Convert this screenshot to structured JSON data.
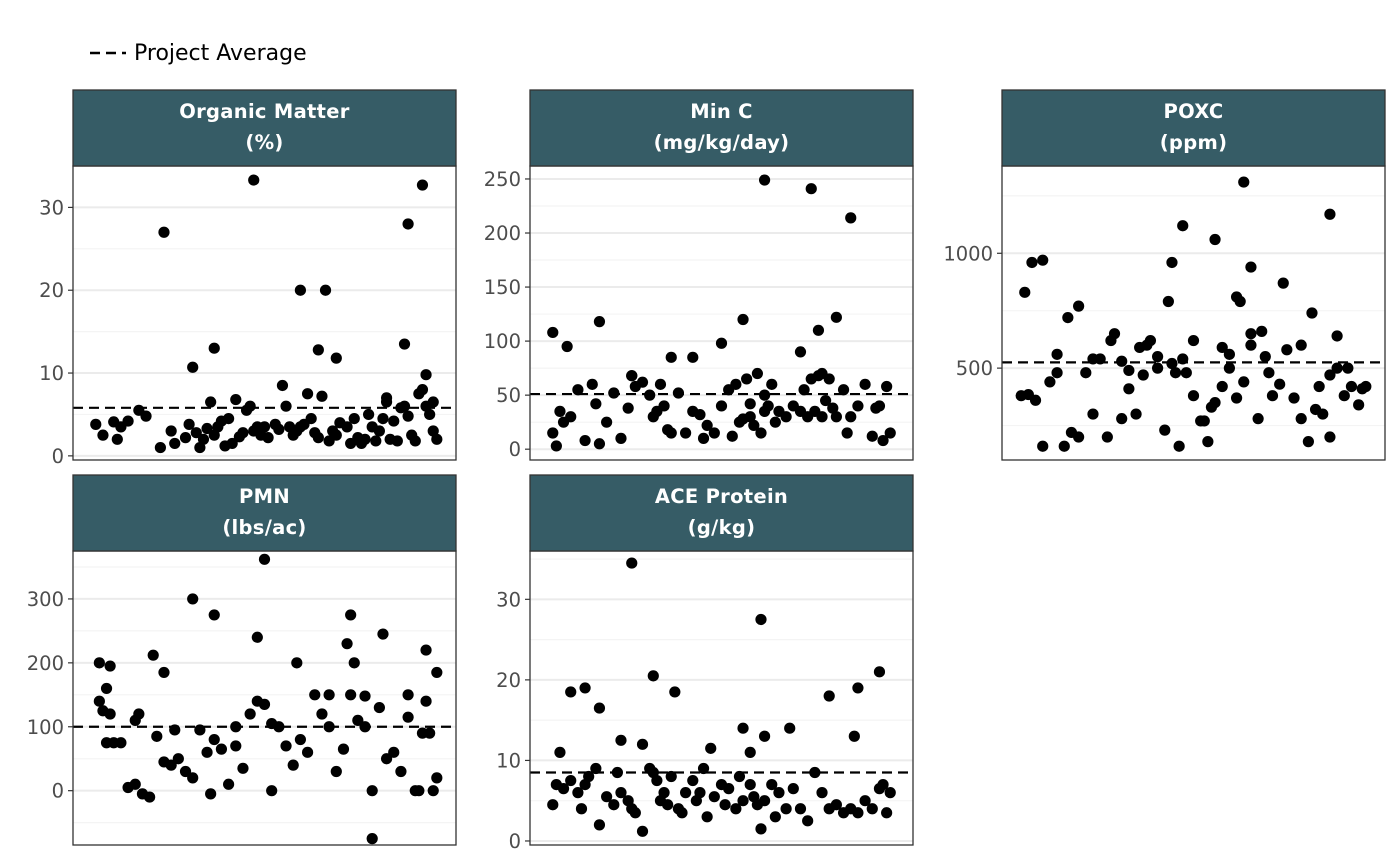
{
  "legend": {
    "label": "Project Average"
  },
  "colors": {
    "strip": "#365c66",
    "points": "#000000",
    "panel_border": "#333333",
    "grid_major": "#ebebeb",
    "grid_minor": "#f4f4f4",
    "tick_text": "#4d4d4d"
  },
  "chart_data": [
    {
      "type": "scatter",
      "title": "Organic Matter",
      "unit": "(%)",
      "ylim": [
        -0.5,
        35
      ],
      "yticks": [
        0,
        10,
        20,
        30
      ],
      "yticklabels": [
        "0",
        "10",
        "20",
        "30"
      ],
      "project_average": 5.8,
      "x": [
        0.03,
        0.05,
        0.08,
        0.09,
        0.1,
        0.12,
        0.15,
        0.17,
        0.21,
        0.24,
        0.25,
        0.28,
        0.29,
        0.31,
        0.32,
        0.33,
        0.34,
        0.35,
        0.36,
        0.37,
        0.38,
        0.39,
        0.4,
        0.41,
        0.42,
        0.43,
        0.44,
        0.45,
        0.46,
        0.47,
        0.48,
        0.49,
        0.5,
        0.51,
        0.53,
        0.54,
        0.56,
        0.57,
        0.58,
        0.59,
        0.6,
        0.61,
        0.63,
        0.64,
        0.65,
        0.66,
        0.68,
        0.69,
        0.7,
        0.71,
        0.73,
        0.74,
        0.75,
        0.76,
        0.77,
        0.78,
        0.79,
        0.8,
        0.81,
        0.82,
        0.83,
        0.84,
        0.85,
        0.86,
        0.87,
        0.88,
        0.89,
        0.9,
        0.91,
        0.92,
        0.93,
        0.94,
        0.95,
        0.96,
        0.97,
        0.22,
        0.47,
        0.6,
        0.67,
        0.9,
        0.65,
        0.36,
        0.7,
        0.94,
        0.89,
        0.84,
        0.95,
        0.97,
        0.98,
        0.3,
        0.55,
        0.62
      ],
      "y": [
        3.8,
        2.5,
        4.1,
        2.0,
        3.5,
        4.2,
        5.5,
        4.8,
        1.0,
        3.0,
        1.5,
        2.2,
        3.8,
        2.8,
        1.0,
        2.0,
        3.3,
        6.5,
        2.5,
        3.5,
        4.2,
        1.2,
        4.5,
        1.5,
        6.8,
        2.3,
        2.8,
        5.5,
        6.0,
        3.0,
        3.5,
        2.5,
        3.5,
        2.2,
        3.8,
        3.2,
        6.0,
        3.5,
        2.5,
        3.0,
        3.5,
        3.8,
        4.5,
        2.8,
        2.2,
        7.2,
        1.8,
        3.0,
        2.5,
        4.0,
        3.5,
        1.5,
        4.5,
        2.2,
        1.5,
        2.0,
        5.0,
        3.5,
        1.8,
        3.0,
        4.5,
        6.5,
        2.0,
        4.2,
        1.8,
        5.8,
        6.0,
        4.8,
        2.5,
        1.8,
        7.5,
        8.0,
        9.8,
        5.0,
        6.5,
        27.0,
        33.3,
        20.0,
        20.0,
        28.0,
        12.8,
        13.0,
        11.8,
        32.7,
        13.5,
        7.0,
        6.0,
        3.0,
        2.0,
        10.7,
        8.5,
        7.5
      ]
    },
    {
      "type": "scatter",
      "title": "Min C",
      "unit": "(mg/kg/day)",
      "ylim": [
        -10,
        262
      ],
      "yticks": [
        0,
        50,
        100,
        150,
        200,
        250
      ],
      "yticklabels": [
        "0",
        "50",
        "100",
        "150",
        "200",
        "250"
      ],
      "project_average": 51,
      "x": [
        0.03,
        0.04,
        0.05,
        0.06,
        0.08,
        0.1,
        0.12,
        0.14,
        0.15,
        0.16,
        0.18,
        0.2,
        0.22,
        0.24,
        0.25,
        0.26,
        0.28,
        0.3,
        0.31,
        0.32,
        0.33,
        0.34,
        0.35,
        0.36,
        0.38,
        0.4,
        0.42,
        0.44,
        0.45,
        0.46,
        0.48,
        0.5,
        0.52,
        0.53,
        0.54,
        0.55,
        0.56,
        0.57,
        0.58,
        0.59,
        0.6,
        0.61,
        0.62,
        0.63,
        0.64,
        0.65,
        0.66,
        0.68,
        0.7,
        0.72,
        0.73,
        0.74,
        0.75,
        0.76,
        0.77,
        0.78,
        0.79,
        0.8,
        0.81,
        0.82,
        0.84,
        0.85,
        0.86,
        0.88,
        0.9,
        0.92,
        0.93,
        0.94,
        0.95,
        0.96,
        0.97,
        0.03,
        0.07,
        0.16,
        0.25,
        0.36,
        0.42,
        0.5,
        0.56,
        0.62,
        0.72,
        0.77,
        0.82,
        0.78,
        0.58
      ],
      "y": [
        15,
        3,
        35,
        25,
        30,
        55,
        8,
        60,
        42,
        5,
        25,
        52,
        10,
        38,
        68,
        58,
        62,
        50,
        30,
        35,
        60,
        40,
        18,
        15,
        52,
        15,
        35,
        32,
        10,
        22,
        15,
        40,
        55,
        12,
        60,
        25,
        28,
        65,
        30,
        22,
        70,
        15,
        50,
        40,
        60,
        25,
        35,
        30,
        40,
        35,
        55,
        30,
        65,
        35,
        68,
        30,
        45,
        65,
        38,
        30,
        55,
        15,
        30,
        40,
        60,
        12,
        38,
        40,
        8,
        58,
        15,
        108,
        95,
        118,
        68,
        85,
        85,
        98,
        120,
        35,
        90,
        110,
        122,
        70,
        42
      ],
      "outliers": [
        [
          0.62,
          249
        ],
        [
          0.75,
          241
        ],
        [
          0.86,
          214
        ]
      ]
    },
    {
      "type": "scatter",
      "title": "POXC",
      "unit": "(ppm)",
      "ylim": [
        100,
        1380
      ],
      "yticks": [
        500,
        1000
      ],
      "yticklabels": [
        "500",
        "1000"
      ],
      "project_average": 525,
      "x": [
        0.02,
        0.04,
        0.06,
        0.08,
        0.1,
        0.12,
        0.14,
        0.16,
        0.18,
        0.2,
        0.22,
        0.24,
        0.26,
        0.28,
        0.3,
        0.32,
        0.34,
        0.36,
        0.38,
        0.4,
        0.42,
        0.44,
        0.46,
        0.48,
        0.5,
        0.52,
        0.54,
        0.56,
        0.58,
        0.6,
        0.62,
        0.64,
        0.66,
        0.68,
        0.7,
        0.72,
        0.74,
        0.76,
        0.78,
        0.8,
        0.82,
        0.84,
        0.86,
        0.88,
        0.9,
        0.92,
        0.94,
        0.96,
        0.98,
        0.05,
        0.12,
        0.18,
        0.27,
        0.32,
        0.37,
        0.4,
        0.45,
        0.47,
        0.55,
        0.6,
        0.66,
        0.71,
        0.8,
        0.85,
        0.9,
        0.93,
        0.97,
        0.03,
        0.08,
        0.15,
        0.22,
        0.3,
        0.35,
        0.43,
        0.5,
        0.53,
        0.58,
        0.63,
        0.69,
        0.75,
        0.83,
        0.88
      ],
      "y": [
        380,
        385,
        360,
        160,
        440,
        560,
        160,
        220,
        200,
        480,
        300,
        540,
        200,
        650,
        280,
        410,
        300,
        470,
        620,
        500,
        230,
        520,
        160,
        480,
        380,
        270,
        180,
        350,
        420,
        500,
        370,
        440,
        600,
        280,
        550,
        380,
        430,
        580,
        370,
        280,
        180,
        320,
        300,
        200,
        500,
        380,
        420,
        340,
        420,
        960,
        480,
        770,
        620,
        490,
        600,
        550,
        480,
        540,
        330,
        560,
        650,
        480,
        600,
        420,
        640,
        500,
        410,
        830,
        970,
        720,
        540,
        530,
        590,
        790,
        620,
        270,
        590,
        790,
        660,
        870,
        740,
        470
      ],
      "outliers": [
        [
          0.44,
          960
        ],
        [
          0.47,
          1120
        ],
        [
          0.56,
          1060
        ],
        [
          0.62,
          810
        ],
        [
          0.64,
          1310
        ],
        [
          0.66,
          940
        ],
        [
          0.88,
          1170
        ]
      ]
    },
    {
      "type": "scatter",
      "title": "PMN",
      "unit": "(lbs/ac)",
      "ylim": [
        -85,
        375
      ],
      "yticks": [
        0,
        100,
        200,
        300
      ],
      "yticklabels": [
        "0",
        "100",
        "200",
        "300"
      ],
      "project_average": 100,
      "x": [
        0.04,
        0.05,
        0.06,
        0.07,
        0.08,
        0.1,
        0.12,
        0.14,
        0.15,
        0.16,
        0.18,
        0.2,
        0.22,
        0.24,
        0.25,
        0.26,
        0.28,
        0.3,
        0.32,
        0.34,
        0.35,
        0.36,
        0.38,
        0.4,
        0.42,
        0.44,
        0.46,
        0.48,
        0.5,
        0.52,
        0.54,
        0.56,
        0.58,
        0.6,
        0.62,
        0.64,
        0.66,
        0.68,
        0.7,
        0.72,
        0.74,
        0.75,
        0.76,
        0.78,
        0.8,
        0.82,
        0.84,
        0.86,
        0.88,
        0.9,
        0.92,
        0.93,
        0.94,
        0.95,
        0.96,
        0.97,
        0.98,
        0.04,
        0.06,
        0.19,
        0.3,
        0.36,
        0.48,
        0.59,
        0.68,
        0.73,
        0.74,
        0.83,
        0.9,
        0.95,
        0.98,
        0.78,
        0.07,
        0.14,
        0.22,
        0.42,
        0.52
      ],
      "y": [
        140,
        125,
        75,
        120,
        75,
        75,
        5,
        10,
        120,
        -5,
        -10,
        85,
        45,
        40,
        95,
        50,
        30,
        20,
        95,
        60,
        -5,
        80,
        65,
        10,
        70,
        35,
        120,
        140,
        135,
        0,
        100,
        70,
        40,
        80,
        60,
        150,
        120,
        100,
        30,
        65,
        150,
        200,
        110,
        100,
        0,
        130,
        50,
        60,
        30,
        115,
        0,
        0,
        90,
        140,
        90,
        0,
        20,
        200,
        160,
        212,
        300,
        275,
        240,
        200,
        150,
        230,
        275,
        245,
        150,
        220,
        185,
        148,
        195,
        110,
        185,
        100,
        105
      ],
      "outliers": [
        [
          0.5,
          362
        ],
        [
          0.8,
          -75
        ]
      ]
    },
    {
      "type": "scatter",
      "title": "ACE Protein",
      "unit": "(g/kg)",
      "ylim": [
        -0.5,
        36
      ],
      "yticks": [
        0,
        10,
        20,
        30
      ],
      "yticklabels": [
        "0",
        "10",
        "20",
        "30"
      ],
      "project_average": 8.5,
      "x": [
        0.03,
        0.04,
        0.06,
        0.08,
        0.1,
        0.11,
        0.12,
        0.13,
        0.15,
        0.16,
        0.18,
        0.2,
        0.21,
        0.22,
        0.24,
        0.25,
        0.26,
        0.28,
        0.3,
        0.31,
        0.32,
        0.33,
        0.34,
        0.35,
        0.36,
        0.38,
        0.39,
        0.4,
        0.42,
        0.43,
        0.44,
        0.45,
        0.46,
        0.48,
        0.5,
        0.51,
        0.52,
        0.54,
        0.55,
        0.56,
        0.58,
        0.59,
        0.6,
        0.61,
        0.62,
        0.64,
        0.65,
        0.66,
        0.68,
        0.7,
        0.72,
        0.74,
        0.76,
        0.78,
        0.8,
        0.82,
        0.84,
        0.86,
        0.88,
        0.9,
        0.92,
        0.94,
        0.95,
        0.96,
        0.97,
        0.05,
        0.08,
        0.16,
        0.22,
        0.28,
        0.37,
        0.47,
        0.56,
        0.62,
        0.69,
        0.8,
        0.87,
        0.94,
        0.31,
        0.12,
        0.58
      ],
      "y": [
        4.5,
        7.0,
        6.5,
        7.5,
        6.0,
        4.0,
        7.0,
        8.0,
        9.0,
        2.0,
        5.5,
        4.5,
        8.5,
        6.0,
        5.0,
        4.0,
        3.5,
        1.2,
        9.0,
        8.5,
        7.5,
        5.0,
        6.0,
        4.5,
        8.0,
        4.0,
        3.5,
        6.0,
        7.5,
        5.0,
        6.0,
        9.0,
        3.0,
        5.5,
        7.0,
        4.5,
        6.5,
        4.0,
        8.0,
        5.0,
        7.0,
        5.5,
        4.5,
        1.5,
        5.0,
        7.0,
        3.0,
        6.0,
        4.0,
        6.5,
        4.0,
        2.5,
        8.5,
        6.0,
        4.0,
        4.5,
        3.5,
        4.0,
        3.5,
        5.0,
        4.0,
        6.5,
        7.0,
        3.5,
        6.0,
        11.0,
        18.5,
        16.5,
        12.5,
        12.0,
        18.5,
        11.5,
        14.0,
        13.0,
        14.0,
        18.0,
        13.0,
        21.0,
        20.5,
        19.0,
        11.0
      ],
      "outliers": [
        [
          0.25,
          34.5
        ],
        [
          0.61,
          27.5
        ],
        [
          0.88,
          19.0
        ]
      ]
    }
  ]
}
